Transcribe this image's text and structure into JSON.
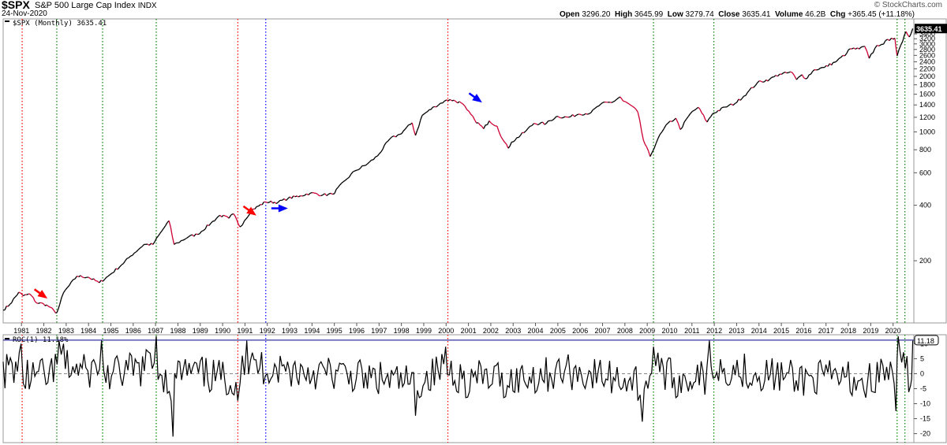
{
  "header": {
    "symbol": "$SPX",
    "name": "S&P 500 Large Cap Index",
    "exchange": "INDX",
    "date": "24-Nov-2020",
    "brand": "© StockCharts.com",
    "open_label": "Open",
    "open_value": "3296.20",
    "high_label": "High",
    "high_value": "3645.99",
    "low_label": "Low",
    "low_value": "3279.74",
    "close_label": "Close",
    "close_value": "3635.41",
    "volume_label": "Volume",
    "volume_value": "46.2B",
    "chg_label": "Chg",
    "chg_value": "+365.45 (+11.18%)"
  },
  "colors": {
    "price_up": "#000000",
    "price_down": "#cc0033",
    "red_marker": "#ff0000",
    "green_marker": "#008000",
    "blue_marker": "#0000ff",
    "roc_level": "#000080"
  },
  "chart_data": [
    {
      "type": "line",
      "legend": "$SPX (Monthly) 3635.41",
      "last_value_label": "3635.41",
      "y_scale": "log",
      "ylim": [
        92,
        4100
      ],
      "xlim": [
        1980.2,
        2020.95
      ],
      "y_ticks": [
        200,
        400,
        600,
        800,
        1000,
        1200,
        1400,
        1600,
        1800,
        2000,
        2200,
        2400,
        2600,
        2800,
        3000,
        3200,
        3400
      ],
      "x_ticks": [
        "1981",
        "1982",
        "1983",
        "1984",
        "1985",
        "1986",
        "1987",
        "1988",
        "1989",
        "1990",
        "1991",
        "1992",
        "1993",
        "1994",
        "1995",
        "1996",
        "1997",
        "1998",
        "1999",
        "2000",
        "2001",
        "2002",
        "2003",
        "2004",
        "2005",
        "2006",
        "2007",
        "2008",
        "2009",
        "2010",
        "2011",
        "2012",
        "2013",
        "2014",
        "2015",
        "2016",
        "2017",
        "2018",
        "2019",
        "2020"
      ],
      "series": [
        {
          "values": [
            [
              1980.2,
              108
            ],
            [
              1980.5,
              116
            ],
            [
              1980.9,
              135
            ],
            [
              1981.1,
              129
            ],
            [
              1981.4,
              132
            ],
            [
              1981.7,
              118
            ],
            [
              1982.0,
              117
            ],
            [
              1982.3,
              112
            ],
            [
              1982.55,
              104
            ],
            [
              1982.65,
              108
            ],
            [
              1982.9,
              134
            ],
            [
              1983.5,
              165
            ],
            [
              1984.0,
              163
            ],
            [
              1984.5,
              152
            ],
            [
              1984.9,
              165
            ],
            [
              1985.5,
              190
            ],
            [
              1985.9,
              212
            ],
            [
              1986.5,
              245
            ],
            [
              1986.9,
              245
            ],
            [
              1987.3,
              290
            ],
            [
              1987.62,
              330
            ],
            [
              1987.85,
              245
            ],
            [
              1988.0,
              250
            ],
            [
              1988.5,
              270
            ],
            [
              1988.9,
              278
            ],
            [
              1989.5,
              320
            ],
            [
              1989.9,
              353
            ],
            [
              1990.3,
              340
            ],
            [
              1990.5,
              360
            ],
            [
              1990.8,
              305
            ],
            [
              1991.0,
              330
            ],
            [
              1991.3,
              375
            ],
            [
              1991.95,
              417
            ],
            [
              1992.5,
              415
            ],
            [
              1992.95,
              436
            ],
            [
              1993.5,
              450
            ],
            [
              1993.95,
              466
            ],
            [
              1994.5,
              455
            ],
            [
              1994.95,
              459
            ],
            [
              1995.5,
              545
            ],
            [
              1995.95,
              615
            ],
            [
              1996.5,
              670
            ],
            [
              1996.95,
              740
            ],
            [
              1997.5,
              915
            ],
            [
              1997.95,
              970
            ],
            [
              1998.5,
              1120
            ],
            [
              1998.65,
              957
            ],
            [
              1998.95,
              1229
            ],
            [
              1999.5,
              1370
            ],
            [
              1999.95,
              1469
            ],
            [
              2000.2,
              1498
            ],
            [
              2000.7,
              1436
            ],
            [
              2000.95,
              1320
            ],
            [
              2001.3,
              1160
            ],
            [
              2001.7,
              1040
            ],
            [
              2001.95,
              1148
            ],
            [
              2002.3,
              1075
            ],
            [
              2002.55,
              911
            ],
            [
              2002.8,
              815
            ],
            [
              2002.95,
              880
            ],
            [
              2003.5,
              990
            ],
            [
              2003.95,
              1111
            ],
            [
              2004.5,
              1110
            ],
            [
              2004.95,
              1211
            ],
            [
              2005.5,
              1200
            ],
            [
              2005.95,
              1248
            ],
            [
              2006.5,
              1270
            ],
            [
              2006.95,
              1418
            ],
            [
              2007.5,
              1455
            ],
            [
              2007.8,
              1549
            ],
            [
              2007.95,
              1468
            ],
            [
              2008.3,
              1390
            ],
            [
              2008.6,
              1280
            ],
            [
              2008.85,
              900
            ],
            [
              2009.15,
              735
            ],
            [
              2009.5,
              920
            ],
            [
              2009.95,
              1115
            ],
            [
              2010.3,
              1186
            ],
            [
              2010.5,
              1030
            ],
            [
              2010.95,
              1257
            ],
            [
              2011.3,
              1360
            ],
            [
              2011.7,
              1131
            ],
            [
              2011.95,
              1257
            ],
            [
              2012.5,
              1362
            ],
            [
              2012.95,
              1426
            ],
            [
              2013.5,
              1630
            ],
            [
              2013.95,
              1848
            ],
            [
              2014.5,
              1930
            ],
            [
              2014.95,
              2058
            ],
            [
              2015.5,
              2103
            ],
            [
              2015.7,
              1920
            ],
            [
              2015.95,
              2043
            ],
            [
              2016.1,
              1940
            ],
            [
              2016.5,
              2173
            ],
            [
              2016.95,
              2238
            ],
            [
              2017.5,
              2420
            ],
            [
              2017.95,
              2673
            ],
            [
              2018.1,
              2823
            ],
            [
              2018.5,
              2815
            ],
            [
              2018.75,
              2913
            ],
            [
              2018.95,
              2506
            ],
            [
              2019.3,
              2945
            ],
            [
              2019.5,
              2980
            ],
            [
              2019.95,
              3230
            ],
            [
              2020.1,
              3225
            ],
            [
              2020.2,
              2584
            ],
            [
              2020.45,
              3100
            ],
            [
              2020.6,
              3500
            ],
            [
              2020.75,
              3270
            ],
            [
              2020.9,
              3635
            ]
          ]
        }
      ]
    },
    {
      "type": "line",
      "legend": "ROC(1) 11.18%",
      "last_value_label": "11.18",
      "ylim": [
        -23,
        13
      ],
      "y_ticks": [
        -20,
        -15,
        -10,
        -5,
        0,
        5,
        10
      ],
      "reference_level": 11.18,
      "series": [
        {
          "values": [
            [
              1980.2,
              4
            ],
            [
              1981.0,
              10
            ],
            [
              1981.2,
              -5
            ],
            [
              1982.2,
              -3
            ],
            [
              1982.7,
              11
            ],
            [
              1982.9,
              10
            ],
            [
              1983.9,
              2
            ],
            [
              1984.6,
              11
            ],
            [
              1984.8,
              -3
            ],
            [
              1986.6,
              8
            ],
            [
              1987.05,
              13
            ],
            [
              1987.8,
              -21
            ],
            [
              1988.1,
              4
            ],
            [
              1990.7,
              -9
            ],
            [
              1990.9,
              6
            ],
            [
              1991.1,
              11
            ],
            [
              1996.5,
              -5
            ],
            [
              1998.65,
              -14
            ],
            [
              2000.0,
              9
            ],
            [
              2000.9,
              -8
            ],
            [
              2002.0,
              -4
            ],
            [
              2002.6,
              -8
            ],
            [
              2005.4,
              3
            ],
            [
              2008.6,
              -9
            ],
            [
              2008.8,
              -16
            ],
            [
              2009.3,
              9
            ],
            [
              2009.5,
              7
            ],
            [
              2010.3,
              -8
            ],
            [
              2011.1,
              -3
            ],
            [
              2011.6,
              -7
            ],
            [
              2011.8,
              11
            ],
            [
              2015.6,
              -6
            ],
            [
              2018.1,
              -6
            ],
            [
              2018.8,
              -8
            ],
            [
              2019.9,
              4
            ],
            [
              2020.15,
              -12.5
            ],
            [
              2020.25,
              13
            ],
            [
              2020.8,
              -4
            ],
            [
              2020.9,
              11
            ]
          ]
        }
      ]
    }
  ],
  "markers": [
    {
      "year": 1981.05,
      "color": "red"
    },
    {
      "year": 1982.6,
      "color": "green"
    },
    {
      "year": 1984.65,
      "color": "green"
    },
    {
      "year": 1987.05,
      "color": "green"
    },
    {
      "year": 1990.7,
      "color": "red"
    },
    {
      "year": 1991.95,
      "color": "blue"
    },
    {
      "year": 2000.1,
      "color": "red"
    },
    {
      "year": 2009.3,
      "color": "green"
    },
    {
      "year": 2012.0,
      "color": "green"
    },
    {
      "year": 2020.2,
      "color": "green"
    },
    {
      "year": 2020.55,
      "color": "green"
    }
  ],
  "arrows": [
    {
      "year": 1981.6,
      "value": 140,
      "direction": "down-right",
      "color": "red"
    },
    {
      "year": 1990.95,
      "value": 395,
      "direction": "down-right",
      "color": "red"
    },
    {
      "year": 1992.2,
      "value": 385,
      "direction": "right",
      "color": "blue"
    },
    {
      "year": 2001.05,
      "value": 1620,
      "direction": "down-right",
      "color": "blue"
    }
  ]
}
